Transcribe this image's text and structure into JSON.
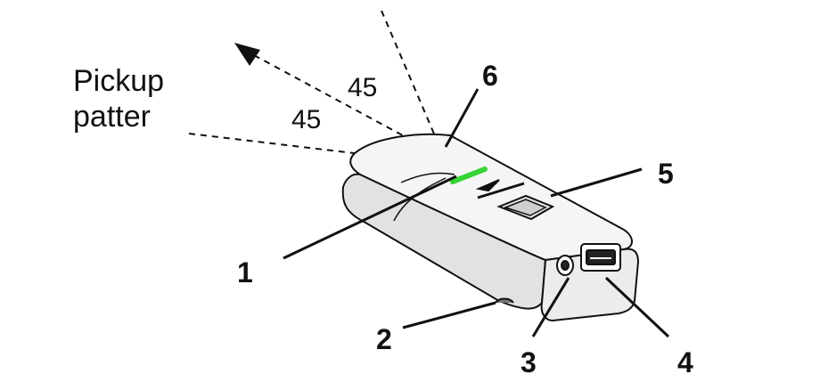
{
  "pickup_label": {
    "line1": "Pickup",
    "line2": "patter"
  },
  "angles": [
    "45",
    "45"
  ],
  "callouts": [
    "1",
    "2",
    "3",
    "4",
    "5",
    "6"
  ],
  "colors": {
    "led": "#35d435",
    "ink": "#111111",
    "body_top": "#f4f4f4",
    "body_side": "#dcdcdc"
  }
}
